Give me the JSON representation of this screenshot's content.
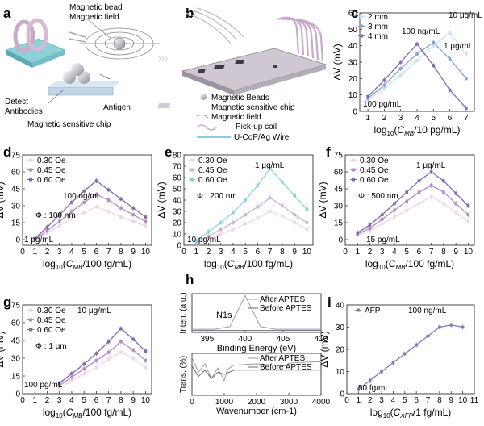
{
  "schematic_a": {
    "panel_label": "a",
    "labels": [
      "Magnetic bead",
      "Magnetic field",
      "Detect",
      "Antibodies",
      "Antigen",
      "Magnetic sensitive chip"
    ]
  },
  "schematic_b": {
    "panel_label": "b",
    "legend": [
      "Magnetic Beads",
      "Magnetic sensitive chip",
      "Magnetic field",
      "Pick-up coil",
      "U-CoP/Ag Wire"
    ]
  },
  "colors": {
    "light": "#cfc2d6",
    "mid": "#b28bb8",
    "dark": "#7a5fa0",
    "teal": "#8ccfd8",
    "series_c": [
      "#c4e3ea",
      "#8aa2d3",
      "#7d6fb0"
    ],
    "series_sensor": [
      "#eed6e3",
      "#b58ac4",
      "#7f6aa6"
    ],
    "series_e": [
      "#f1d7e4",
      "#cab3dc",
      "#8ed3dc"
    ],
    "afp": "#7f7ab8"
  },
  "chart_data": [
    {
      "panel": "c",
      "type": "line",
      "x": [
        1,
        2,
        3,
        4,
        5,
        6,
        7
      ],
      "xlim": [
        0.5,
        7.5
      ],
      "ylim": [
        0,
        60
      ],
      "xticks": [
        "1",
        "2",
        "3",
        "4",
        "5",
        "6",
        "7"
      ],
      "yticks": [
        "0",
        "10",
        "20",
        "30",
        "40",
        "50",
        "60"
      ],
      "xlabel": "log10(CMB/10 pg/mL)",
      "ylabel": "ΔV (mV)",
      "series": [
        {
          "name": "2 mm",
          "values": [
            7,
            14,
            22,
            31,
            40,
            48,
            35
          ]
        },
        {
          "name": "3 mm",
          "values": [
            8,
            16,
            26,
            35,
            42,
            32,
            20
          ]
        },
        {
          "name": "4 mm",
          "values": [
            9,
            19,
            30,
            41,
            28,
            13,
            2
          ]
        }
      ],
      "annotations": [
        "10 μg/mL",
        "100 ng/mL",
        "1 μg/mL",
        "100 pg/mL"
      ],
      "legend_position": "top-left"
    },
    {
      "panel": "d",
      "type": "line",
      "x": [
        1,
        2,
        3,
        4,
        5,
        6,
        7,
        8,
        9,
        10
      ],
      "xlim": [
        0,
        10.5
      ],
      "ylim": [
        -5,
        75
      ],
      "xticks": [
        "0",
        "1",
        "2",
        "3",
        "4",
        "5",
        "6",
        "7",
        "8",
        "9",
        "10"
      ],
      "yticks": [
        "0",
        "15",
        "30",
        "45",
        "60",
        "75"
      ],
      "xlabel": "log10(CMB/100 fg/mL)",
      "ylabel": "ΔV (mV)",
      "series": [
        {
          "name": "0.30 Oe",
          "values": [
            0,
            6,
            12,
            19,
            24,
            29,
            25,
            20,
            16,
            12
          ]
        },
        {
          "name": "0.45 Oe",
          "values": [
            0,
            8,
            16,
            25,
            33,
            40,
            35,
            28,
            22,
            16
          ]
        },
        {
          "name": "0.60 Oe",
          "values": [
            1,
            11,
            22,
            33,
            43,
            52,
            44,
            36,
            28,
            20
          ]
        }
      ],
      "annotations": [
        "100 ng/mL",
        "Φ : 100 nm",
        "1 pg/mL"
      ],
      "legend_position": "top-left"
    },
    {
      "panel": "e",
      "type": "line",
      "x": [
        1,
        2,
        3,
        4,
        5,
        6,
        7,
        8,
        9,
        10
      ],
      "xlim": [
        0,
        10.5
      ],
      "ylim": [
        0,
        80
      ],
      "xticks": [
        "0",
        "1",
        "2",
        "3",
        "4",
        "5",
        "6",
        "7",
        "8",
        "9",
        "10"
      ],
      "yticks": [
        "0",
        "10",
        "20",
        "30",
        "40",
        "50",
        "60",
        "70",
        "80"
      ],
      "xlabel": "log10(CMB/100 fg/mL)",
      "ylabel": "ΔV (mV)",
      "series": [
        {
          "name": "0.30 Oe",
          "values": [
            2,
            6,
            10,
            14,
            19,
            24,
            30,
            26,
            20,
            14
          ]
        },
        {
          "name": "0.45 Oe",
          "values": [
            3,
            8,
            14,
            20,
            27,
            34,
            42,
            35,
            27,
            20
          ]
        },
        {
          "name": "0.60 Oe",
          "values": [
            4,
            12,
            20,
            29,
            40,
            53,
            68,
            56,
            44,
            32
          ]
        }
      ],
      "annotations": [
        "1 μg/mL",
        "Φ : 200 nm",
        "10 pg/mL"
      ],
      "legend_position": "top-left"
    },
    {
      "panel": "f",
      "type": "line",
      "x": [
        1,
        2,
        3,
        4,
        5,
        6,
        7,
        8,
        9,
        10
      ],
      "xlim": [
        0,
        10.5
      ],
      "ylim": [
        -5,
        75
      ],
      "xticks": [
        "0",
        "1",
        "2",
        "3",
        "4",
        "5",
        "6",
        "7",
        "8",
        "9",
        "10"
      ],
      "yticks": [
        "0",
        "15",
        "30",
        "45",
        "60",
        "75"
      ],
      "xlabel": "log10(CMB/100 fg/mL)",
      "ylabel": "ΔV (mV)",
      "series": [
        {
          "name": "0.30 Oe",
          "values": [
            4,
            8,
            14,
            20,
            26,
            32,
            38,
            32,
            24,
            16
          ]
        },
        {
          "name": "0.45 Oe",
          "values": [
            5,
            10,
            18,
            26,
            34,
            42,
            48,
            42,
            32,
            22
          ]
        },
        {
          "name": "0.60 Oe",
          "values": [
            6,
            13,
            22,
            32,
            42,
            52,
            60,
            52,
            41,
            30
          ]
        }
      ],
      "annotations": [
        "1 μg/mL",
        "Φ : 500 nm",
        "15 pg/mL"
      ],
      "legend_position": "top-left"
    },
    {
      "panel": "g",
      "type": "line",
      "x": [
        1,
        2,
        3,
        4,
        5,
        6,
        7,
        8,
        9,
        10
      ],
      "xlim": [
        0,
        10.5
      ],
      "ylim": [
        0,
        75
      ],
      "xticks": [
        "0",
        "1",
        "2",
        "3",
        "4",
        "5",
        "6",
        "7",
        "8",
        "9",
        "10"
      ],
      "yticks": [
        "0",
        "15",
        "30",
        "45",
        "60",
        "75"
      ],
      "xlabel": "log10(CMB/100 fg/mL)",
      "ylabel": "ΔV (mV)",
      "series": [
        {
          "name": "0.30 Oe",
          "values": [
            null,
            null,
            5,
            11,
            17,
            22,
            29,
            35,
            30,
            22
          ]
        },
        {
          "name": "0.45 Oe",
          "values": [
            null,
            null,
            7,
            14,
            21,
            28,
            35,
            44,
            37,
            28
          ]
        },
        {
          "name": "0.60 Oe",
          "values": [
            null,
            null,
            9,
            17,
            25,
            34,
            44,
            55,
            46,
            36
          ]
        }
      ],
      "annotations": [
        "10 μg/mL",
        "Φ : 1 μm",
        "100 pg/mL"
      ],
      "legend_position": "top-left"
    },
    {
      "panel": "h_top",
      "type": "line",
      "xlim": [
        393,
        410
      ],
      "xticks": [
        "395",
        "400",
        "405",
        "410"
      ],
      "xlabel": "Binding Energy (eV)",
      "ylabel": "Inten. (a.u.)",
      "series": [
        {
          "name": "After APTES",
          "x": [
            393,
            396,
            398,
            399,
            400,
            401,
            402,
            404,
            410
          ],
          "values": [
            0.08,
            0.08,
            0.15,
            0.55,
            0.95,
            0.55,
            0.15,
            0.08,
            0.08
          ]
        },
        {
          "name": "Before APTES",
          "x": [
            393,
            410
          ],
          "values": [
            0.05,
            0.05
          ]
        }
      ],
      "annotations": [
        "N1s"
      ]
    },
    {
      "panel": "h_bottom",
      "type": "line",
      "xlim": [
        0,
        4000
      ],
      "xticks": [
        "0",
        "1000",
        "2000",
        "3000",
        "4000"
      ],
      "xlabel": "Wavenumber (cm-1)",
      "ylabel": "Trans. (%)",
      "series": [
        {
          "name": "After APTES",
          "x": [
            0,
            200,
            400,
            600,
            800,
            1000,
            1100,
            1300,
            2000,
            2900,
            3000,
            3200,
            4000
          ],
          "values": [
            0.9,
            0.55,
            0.75,
            0.4,
            0.65,
            0.35,
            0.62,
            0.72,
            0.75,
            0.7,
            0.76,
            0.78,
            0.8
          ]
        },
        {
          "name": "Before APTES",
          "x": [
            0,
            200,
            400,
            600,
            800,
            1000,
            1300,
            2000,
            3000,
            4000
          ],
          "values": [
            0.7,
            0.45,
            0.6,
            0.4,
            0.55,
            0.5,
            0.6,
            0.6,
            0.6,
            0.6
          ]
        }
      ]
    },
    {
      "panel": "i",
      "type": "line",
      "x": [
        1,
        2,
        3,
        4,
        5,
        6,
        7,
        8,
        9,
        10
      ],
      "xlim": [
        0,
        11
      ],
      "ylim": [
        0,
        40
      ],
      "xticks": [
        "0",
        "1",
        "2",
        "3",
        "4",
        "5",
        "6",
        "7",
        "8",
        "9",
        "10",
        "11"
      ],
      "yticks": [
        "0",
        "10",
        "20",
        "30",
        "40"
      ],
      "xlabel": "log10(CAFP/1 fg/mL)",
      "ylabel": "ΔV (mV)",
      "series": [
        {
          "name": "AFP",
          "values": [
            2,
            6,
            10,
            14,
            18,
            22,
            26,
            30,
            31,
            30
          ]
        }
      ],
      "annotations": [
        "100 ng/mL",
        "50 fg/mL"
      ],
      "legend_position": "top-left"
    }
  ]
}
